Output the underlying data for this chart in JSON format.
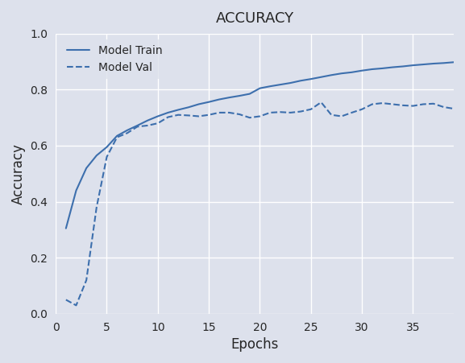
{
  "title": "ACCURACY",
  "xlabel": "Epochs",
  "ylabel": "Accuracy",
  "xlim": [
    0,
    39
  ],
  "ylim": [
    0.0,
    1.0
  ],
  "line_color": "#3d6fad",
  "background_color": "#dde1ec",
  "grid_color": "white",
  "legend_labels": [
    "Model Train",
    "Model Val"
  ],
  "train_acc": [
    0.305,
    0.44,
    0.52,
    0.565,
    0.595,
    0.635,
    0.655,
    0.672,
    0.69,
    0.705,
    0.718,
    0.728,
    0.737,
    0.748,
    0.756,
    0.765,
    0.772,
    0.778,
    0.785,
    0.805,
    0.812,
    0.818,
    0.824,
    0.832,
    0.838,
    0.845,
    0.852,
    0.858,
    0.862,
    0.868,
    0.873,
    0.876,
    0.88,
    0.883,
    0.887,
    0.89,
    0.893,
    0.895,
    0.898,
    0.9
  ],
  "val_acc": [
    0.05,
    0.03,
    0.12,
    0.38,
    0.56,
    0.63,
    0.645,
    0.668,
    0.672,
    0.68,
    0.702,
    0.71,
    0.708,
    0.705,
    0.71,
    0.718,
    0.718,
    0.712,
    0.7,
    0.705,
    0.718,
    0.72,
    0.718,
    0.722,
    0.73,
    0.755,
    0.71,
    0.705,
    0.718,
    0.73,
    0.748,
    0.752,
    0.748,
    0.744,
    0.742,
    0.748,
    0.75,
    0.738,
    0.732,
    0.742
  ],
  "xticks": [
    0,
    5,
    10,
    15,
    20,
    25,
    30,
    35
  ],
  "yticks": [
    0.0,
    0.2,
    0.4,
    0.6,
    0.8,
    1.0
  ]
}
